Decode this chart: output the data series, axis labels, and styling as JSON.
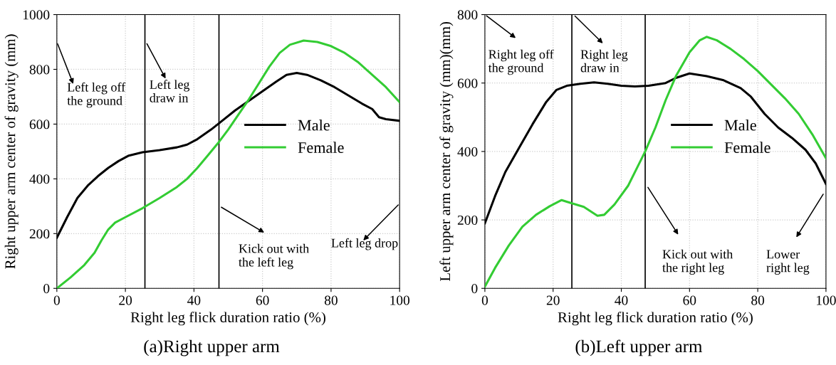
{
  "chart_data": [
    {
      "type": "line",
      "title": "(a)Right upper arm",
      "xlabel": "Right leg flick duration ratio (%)",
      "ylabel": "Right upper arm center of gravity (mm)",
      "xlim": [
        0,
        100
      ],
      "xticks": [
        0,
        20,
        40,
        60,
        80,
        100
      ],
      "ylim": [
        0,
        1000
      ],
      "yticks": [
        0,
        200,
        400,
        600,
        800,
        1000
      ],
      "grid": true,
      "legend": "center right",
      "series": [
        {
          "name": "Male",
          "color": "#000000",
          "x": [
            0,
            3,
            6,
            9,
            12,
            15,
            18,
            21,
            25,
            30,
            35,
            38,
            41,
            45,
            48,
            52,
            56,
            60,
            64,
            67,
            70,
            73,
            77,
            81,
            85,
            89,
            92,
            94,
            96,
            100
          ],
          "values": [
            185,
            260,
            330,
            375,
            410,
            440,
            465,
            485,
            497,
            505,
            515,
            525,
            545,
            580,
            610,
            650,
            685,
            720,
            755,
            780,
            787,
            780,
            760,
            735,
            705,
            675,
            655,
            625,
            618,
            612
          ]
        },
        {
          "name": "Female",
          "color": "#33cc33",
          "x": [
            0,
            4,
            8,
            11,
            13,
            15,
            17,
            20,
            25,
            30,
            35,
            38,
            41,
            44,
            47,
            50,
            53,
            56,
            59,
            62,
            65,
            68,
            72,
            76,
            80,
            84,
            88,
            92,
            96,
            100
          ],
          "values": [
            0,
            40,
            85,
            130,
            175,
            215,
            240,
            260,
            293,
            330,
            370,
            400,
            440,
            485,
            530,
            580,
            635,
            690,
            750,
            810,
            860,
            890,
            905,
            900,
            885,
            860,
            825,
            780,
            735,
            680
          ]
        }
      ],
      "ref_lines": [
        {
          "axis": "x",
          "value": 25.7
        },
        {
          "axis": "x",
          "value": 47.3
        }
      ],
      "annotations": [
        "Left leg off\nthe ground",
        "Left leg\ndraw in",
        "Kick out with\nthe left leg",
        "Left leg drop"
      ]
    },
    {
      "type": "line",
      "title": "(b)Left upper arm",
      "xlabel": "Right leg flick duration ratio (%)",
      "ylabel": "Left upper arm center of gravity (mm)(mm)",
      "xlim": [
        0,
        100
      ],
      "xticks": [
        0,
        20,
        40,
        60,
        80,
        100
      ],
      "ylim": [
        0,
        800
      ],
      "yticks": [
        0,
        200,
        400,
        600,
        800
      ],
      "grid": true,
      "legend": "center right",
      "series": [
        {
          "name": "Male",
          "color": "#000000",
          "x": [
            0,
            3,
            6,
            10,
            14,
            18,
            21,
            24,
            28,
            32,
            36,
            40,
            44,
            48,
            53,
            56,
            60,
            65,
            70,
            75,
            78,
            82,
            86,
            90,
            94,
            97,
            100
          ],
          "values": [
            190,
            270,
            340,
            410,
            480,
            545,
            580,
            592,
            598,
            602,
            598,
            592,
            590,
            592,
            600,
            615,
            628,
            620,
            608,
            585,
            560,
            510,
            470,
            440,
            405,
            365,
            305
          ]
        },
        {
          "name": "Female",
          "color": "#33cc33",
          "x": [
            0,
            3,
            7,
            11,
            15,
            19,
            22.5,
            25,
            29,
            33,
            35,
            38,
            42,
            45,
            47,
            50,
            53,
            56,
            60,
            63,
            65,
            68,
            72,
            76,
            80,
            84,
            88,
            92,
            96,
            100
          ],
          "values": [
            5,
            60,
            125,
            180,
            215,
            240,
            258,
            250,
            238,
            212,
            215,
            245,
            300,
            360,
            400,
            470,
            550,
            620,
            690,
            725,
            735,
            725,
            700,
            670,
            635,
            595,
            555,
            510,
            450,
            380
          ]
        }
      ],
      "ref_lines": [
        {
          "axis": "x",
          "value": 25.5
        },
        {
          "axis": "x",
          "value": 47
        }
      ],
      "annotations": [
        "Right leg off\nthe ground",
        "Right leg\ndraw in",
        "Kick out with\nthe right leg",
        "Lower\nright leg"
      ]
    }
  ]
}
